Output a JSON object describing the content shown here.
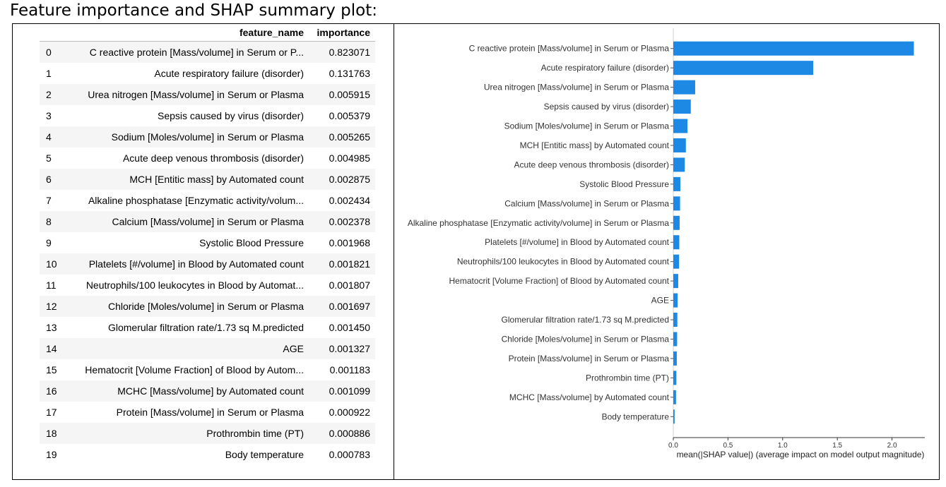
{
  "caption": "Feature importance and SHAP summary plot:",
  "table": {
    "columns": [
      "",
      "feature_name",
      "importance"
    ],
    "rows": [
      {
        "index": "0",
        "feature_name": "C reactive protein [Mass/volume] in Serum or P...",
        "importance": "0.823071"
      },
      {
        "index": "1",
        "feature_name": "Acute respiratory failure (disorder)",
        "importance": "0.131763"
      },
      {
        "index": "2",
        "feature_name": "Urea nitrogen [Mass/volume] in Serum or Plasma",
        "importance": "0.005915"
      },
      {
        "index": "3",
        "feature_name": "Sepsis caused by virus (disorder)",
        "importance": "0.005379"
      },
      {
        "index": "4",
        "feature_name": "Sodium [Moles/volume] in Serum or Plasma",
        "importance": "0.005265"
      },
      {
        "index": "5",
        "feature_name": "Acute deep venous thrombosis (disorder)",
        "importance": "0.004985"
      },
      {
        "index": "6",
        "feature_name": "MCH [Entitic mass] by Automated count",
        "importance": "0.002875"
      },
      {
        "index": "7",
        "feature_name": "Alkaline phosphatase [Enzymatic activity/volum...",
        "importance": "0.002434"
      },
      {
        "index": "8",
        "feature_name": "Calcium [Mass/volume] in Serum or Plasma",
        "importance": "0.002378"
      },
      {
        "index": "9",
        "feature_name": "Systolic Blood Pressure",
        "importance": "0.001968"
      },
      {
        "index": "10",
        "feature_name": "Platelets [#/volume] in Blood by Automated count",
        "importance": "0.001821"
      },
      {
        "index": "11",
        "feature_name": "Neutrophils/100 leukocytes in Blood by Automat...",
        "importance": "0.001807"
      },
      {
        "index": "12",
        "feature_name": "Chloride [Moles/volume] in Serum or Plasma",
        "importance": "0.001697"
      },
      {
        "index": "13",
        "feature_name": "Glomerular filtration rate/1.73 sq M.predicted",
        "importance": "0.001450"
      },
      {
        "index": "14",
        "feature_name": "AGE",
        "importance": "0.001327"
      },
      {
        "index": "15",
        "feature_name": "Hematocrit [Volume Fraction] of Blood by Autom...",
        "importance": "0.001183"
      },
      {
        "index": "16",
        "feature_name": "MCHC [Mass/volume] by Automated count",
        "importance": "0.001099"
      },
      {
        "index": "17",
        "feature_name": "Protein [Mass/volume] in Serum or Plasma",
        "importance": "0.000922"
      },
      {
        "index": "18",
        "feature_name": "Prothrombin time (PT)",
        "importance": "0.000886"
      },
      {
        "index": "19",
        "feature_name": "Body temperature",
        "importance": "0.000783"
      }
    ]
  },
  "chart_data": {
    "type": "bar",
    "orientation": "horizontal",
    "categories": [
      "C reactive protein [Mass/volume] in Serum or Plasma",
      "Acute respiratory failure (disorder)",
      "Urea nitrogen [Mass/volume] in Serum or Plasma",
      "Sepsis caused by virus (disorder)",
      "Sodium [Moles/volume] in Serum or Plasma",
      "MCH [Entitic mass] by Automated count",
      "Acute deep venous thrombosis (disorder)",
      "Systolic Blood Pressure",
      "Calcium [Mass/volume] in Serum or Plasma",
      "Alkaline phosphatase [Enzymatic activity/volume] in Serum or Plasma",
      "Platelets [#/volume] in Blood by Automated count",
      "Neutrophils/100 leukocytes in Blood by Automated count",
      "Hematocrit [Volume Fraction] of Blood by Automated count",
      "AGE",
      "Glomerular filtration rate/1.73 sq M.predicted",
      "Chloride [Moles/volume] in Serum or Plasma",
      "Protein [Mass/volume] in Serum or Plasma",
      "Prothrombin time (PT)",
      "MCHC [Mass/volume] by Automated count",
      "Body temperature"
    ],
    "values": [
      2.2,
      1.28,
      0.2,
      0.16,
      0.13,
      0.115,
      0.105,
      0.065,
      0.062,
      0.058,
      0.055,
      0.053,
      0.045,
      0.04,
      0.037,
      0.035,
      0.032,
      0.028,
      0.025,
      0.012
    ],
    "xlabel": "mean(|SHAP value|) (average impact on model output magnitude)",
    "xlim": [
      0,
      2.3
    ],
    "xticks": [
      0.0,
      0.5,
      1.0,
      1.5,
      2.0
    ],
    "xtick_labels": [
      "0.0",
      "0.5",
      "1.0",
      "1.5",
      "2.0"
    ],
    "bar_color": "#1e88e5",
    "grid": false
  }
}
